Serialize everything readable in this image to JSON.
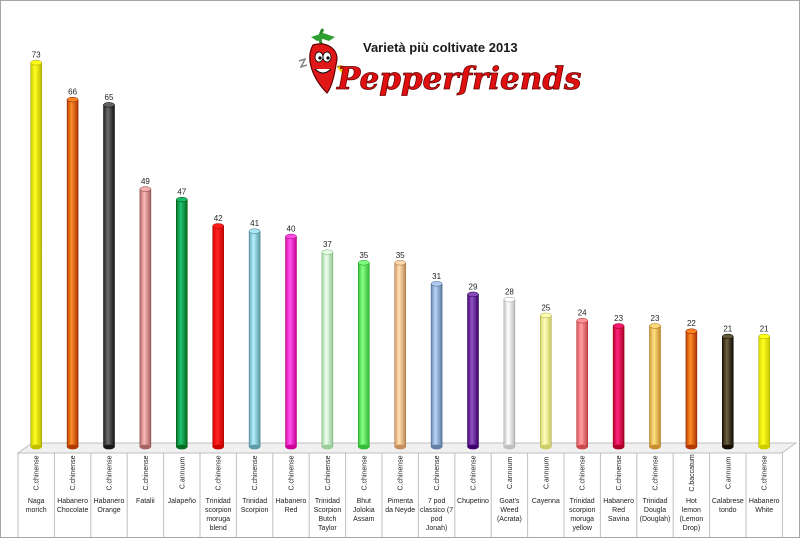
{
  "chart_data": {
    "type": "bar",
    "title": "Varietà più coltivate 2013",
    "logo_text": "Pepperfriends",
    "ylim": [
      0,
      80
    ],
    "grid": false,
    "categories": [
      {
        "name": [
          "Naga",
          "morich"
        ],
        "species": "C.chinense",
        "value": 73,
        "color": "#f2f200"
      },
      {
        "name": [
          "Habanero",
          "Chocolate"
        ],
        "species": "C.chinense",
        "value": 66,
        "color": "#e36c0a"
      },
      {
        "name": [
          "Habanero",
          "Orange"
        ],
        "species": "C.chinense",
        "value": 65,
        "color": "#4a4a4a"
      },
      {
        "name": [
          "Fatalii"
        ],
        "species": "C.chinense",
        "value": 49,
        "color": "#d99694"
      },
      {
        "name": [
          "Jalapeño"
        ],
        "species": "C.annuum",
        "value": 47,
        "color": "#00a050"
      },
      {
        "name": [
          "Trinidad",
          "scorpion",
          "moruga",
          "blend"
        ],
        "species": "C.chinense",
        "value": 42,
        "color": "#ff0000"
      },
      {
        "name": [
          "Trinidad",
          "Scorpion"
        ],
        "species": "C.chinense",
        "value": 41,
        "color": "#92cddc"
      },
      {
        "name": [
          "Habanero",
          "Red"
        ],
        "species": "C.chinense",
        "value": 40,
        "color": "#ff33cc"
      },
      {
        "name": [
          "Trinidad",
          "Scorpion",
          "Butch",
          "Taylor"
        ],
        "species": "C.chinense",
        "value": 37,
        "color": "#ccffcc"
      },
      {
        "name": [
          "Bhut",
          "Jolokia",
          "Assam"
        ],
        "species": "C.chinense",
        "value": 35,
        "color": "#66ee66"
      },
      {
        "name": [
          "Pimenta",
          "da Neyde"
        ],
        "species": "C.chinense",
        "value": 35,
        "color": "#fac090"
      },
      {
        "name": [
          "7 pod",
          "classico (7",
          "pod",
          "Jonah)"
        ],
        "species": "C.chinense",
        "value": 31,
        "color": "#95b3d7"
      },
      {
        "name": [
          "Chupetino"
        ],
        "species": "C.chinense",
        "value": 29,
        "color": "#7030a0"
      },
      {
        "name": [
          "Goat's",
          "Weed",
          "(Acrata)"
        ],
        "species": "C.annuum",
        "value": 28,
        "color": "#f2f2f2"
      },
      {
        "name": [
          "Cayenna"
        ],
        "species": "C.annuum",
        "value": 25,
        "color": "#ffff99"
      },
      {
        "name": [
          "Trinidad",
          "scorpion",
          "moruga",
          "yellow"
        ],
        "species": "C.chinense",
        "value": 24,
        "color": "#ff7c80"
      },
      {
        "name": [
          "Habanero",
          "Red",
          "Savina"
        ],
        "species": "C.chinense",
        "value": 23,
        "color": "#e0005a"
      },
      {
        "name": [
          "Trinidad",
          "Dougla",
          "(Douglah)"
        ],
        "species": "C.chinense",
        "value": 23,
        "color": "#fac060"
      },
      {
        "name": [
          "Hot",
          "lemon",
          "(Lemon",
          "Drop)"
        ],
        "species": "C.baccatum",
        "value": 22,
        "color": "#e36c0a"
      },
      {
        "name": [
          "Calabrese",
          "tondo"
        ],
        "species": "C.annuum",
        "value": 21,
        "color": "#4a4020"
      },
      {
        "name": [
          "Habanero",
          "White"
        ],
        "species": "C.chinense",
        "value": 21,
        "color": "#ffff00"
      }
    ]
  }
}
